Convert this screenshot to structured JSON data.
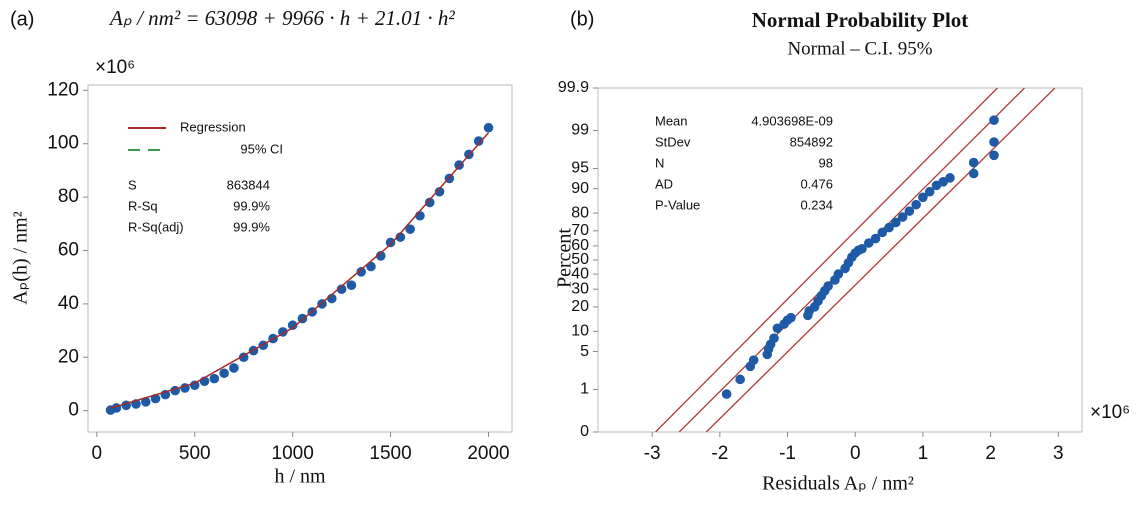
{
  "chart_data": [
    {
      "type": "scatter",
      "panel": "(a)",
      "title": "Aₚ / nm² = 63098 + 9966 · h + 21.01 · h²",
      "x_label": "h / nm",
      "y_label": "Aₚ(h) / nm²",
      "multiplier": "×10⁶",
      "x": [
        70,
        100,
        150,
        200,
        250,
        300,
        350,
        400,
        450,
        500,
        550,
        600,
        650,
        700,
        750,
        800,
        850,
        900,
        950,
        1000,
        1050,
        1100,
        1150,
        1200,
        1250,
        1300,
        1350,
        1400,
        1450,
        1500,
        1550,
        1600,
        1650,
        1700,
        1750,
        1800,
        1850,
        1900,
        1950,
        2000
      ],
      "values": [
        0.2,
        1.0,
        2.0,
        2.5,
        3.3,
        4.5,
        6.0,
        7.5,
        8.5,
        9.5,
        11.0,
        12.0,
        14.0,
        16.0,
        20.0,
        22.5,
        24.5,
        27.0,
        29.5,
        32.0,
        34.5,
        37.0,
        40.0,
        42.0,
        45.5,
        47.0,
        52.0,
        54.0,
        58.0,
        63.0,
        65.0,
        68.0,
        73.0,
        78.0,
        82.0,
        87.0,
        92.0,
        96.0,
        101.0,
        106.0
      ],
      "color": "#1f5aa6",
      "curve": {
        "color": "#a52a2a",
        "x": [
          70,
          500,
          1000,
          1500,
          2000
        ],
        "values": [
          0.9,
          10.3,
          31.0,
          62.3,
          104.1
        ]
      },
      "legend": [
        {
          "name": "Regression",
          "color": "#a52a2a",
          "dashed": false
        },
        {
          "name": "95% CI",
          "color": "#3a9a4a",
          "dashed": true
        }
      ],
      "stats": [
        [
          "S",
          863844
        ],
        [
          "R-Sq",
          "99.9%"
        ],
        [
          "R-Sq(adj)",
          "99.9%"
        ]
      ],
      "xlim": [
        -45,
        2120
      ],
      "xticks": [
        0,
        500,
        1000,
        1500,
        2000
      ],
      "ylim": [
        -8,
        122
      ],
      "yticks": [
        0,
        20,
        40,
        60,
        80,
        100,
        120
      ]
    },
    {
      "type": "probability",
      "panel": "(b)",
      "title": "Normal Probability Plot",
      "subtitle": "Normal – C.I. 95%",
      "x_label": "Residuals Aₚ / nm²",
      "y_label": "Percent",
      "multiplier": "×10⁶",
      "yscale": "probit",
      "x": [
        -1.9,
        -1.7,
        -1.55,
        -1.5,
        -1.3,
        -1.28,
        -1.25,
        -1.2,
        -1.15,
        -1.05,
        -1.0,
        -0.95,
        -0.7,
        -0.68,
        -0.6,
        -0.55,
        -0.5,
        -0.45,
        -0.4,
        -0.3,
        -0.25,
        -0.15,
        -0.1,
        -0.05,
        0.0,
        0.05,
        0.1,
        0.2,
        0.3,
        0.4,
        0.5,
        0.6,
        0.7,
        0.8,
        0.9,
        1.0,
        1.1,
        1.2,
        1.3,
        1.4,
        1.75,
        1.75,
        2.05,
        2.05,
        2.05
      ],
      "values": [
        0.8,
        1.6,
        2.8,
        3.6,
        4.5,
        5.5,
        6.5,
        8,
        11,
        12.5,
        14,
        15,
        16,
        18,
        20,
        23,
        26,
        29,
        32,
        36,
        40,
        44,
        48,
        52,
        55,
        57,
        58,
        62,
        65,
        69,
        72,
        75,
        78,
        81,
        84,
        87,
        89,
        91,
        92,
        93,
        94,
        96,
        97,
        98.3,
        99.4
      ],
      "color": "#1f5aa6",
      "lines": [
        {
          "color": "#b03a3a",
          "x": [
            -2.95,
            2.1
          ],
          "values": [
            0.1,
            99.9
          ]
        },
        {
          "color": "#b03a3a",
          "x": [
            -2.6,
            2.5
          ],
          "values": [
            0.1,
            99.9
          ]
        },
        {
          "color": "#b03a3a",
          "x": [
            -2.2,
            2.95
          ],
          "values": [
            0.1,
            99.9
          ]
        }
      ],
      "stats": [
        [
          "Mean",
          "4.903698E-09"
        ],
        [
          "StDev",
          854892
        ],
        [
          "N",
          98
        ],
        [
          "AD",
          0.476
        ],
        [
          "P-Value",
          0.234
        ]
      ],
      "xlim": [
        -3.8,
        3.35
      ],
      "xticks": [
        -3,
        -2,
        -1,
        0,
        1,
        2,
        3
      ],
      "ylim": [
        0.1,
        99.9
      ],
      "yticks": [
        {
          "value": 0.1,
          "label": "0"
        },
        1,
        5,
        10,
        20,
        30,
        40,
        50,
        60,
        70,
        80,
        90,
        95,
        99,
        99.9
      ]
    }
  ]
}
